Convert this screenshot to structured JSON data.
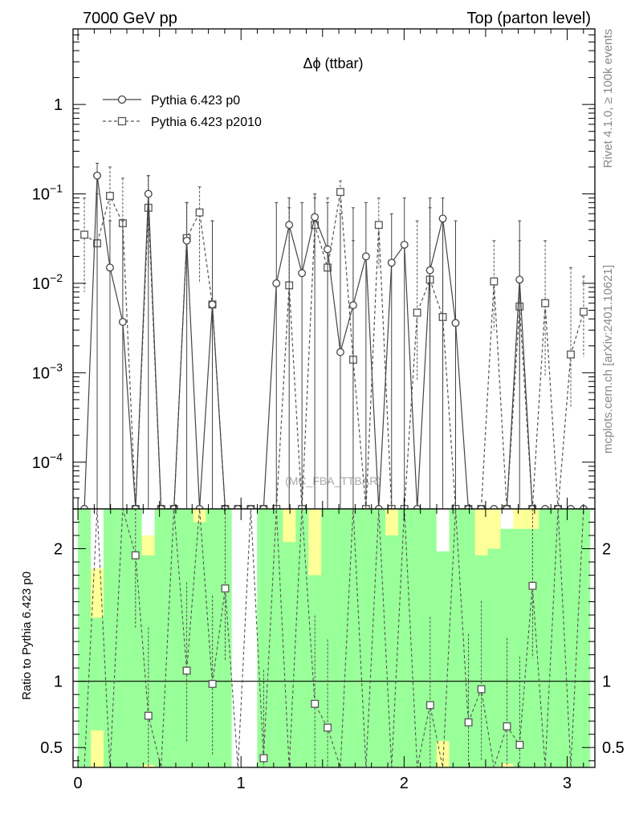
{
  "header": {
    "left": "7000 GeV pp",
    "right": "Top (parton level)"
  },
  "side_labels": {
    "rivet": "Rivet 4.1.0, ≥ 100k events",
    "mcplots": "mcplots.cern.ch [arXiv:2401.10621]"
  },
  "colors": {
    "p0": "#444444",
    "p2010": "#555555",
    "band_green": "#99ff99",
    "band_yellow": "#ffff99",
    "watermark": "#aaaaaa"
  },
  "chart_data": [
    {
      "type": "line",
      "panel": "main",
      "title": "Δϕ (ttbar)",
      "watermark": "(MC_FBA_TTBAR)",
      "yscale": "log",
      "xlim": [
        -0.03,
        3.17
      ],
      "ylim": [
        3e-05,
        7
      ],
      "yticks": [
        {
          "value": 0.0001,
          "base": "10",
          "exp": "−4"
        },
        {
          "value": 0.001,
          "base": "10",
          "exp": "−3"
        },
        {
          "value": 0.01,
          "base": "10",
          "exp": "−2"
        },
        {
          "value": 0.1,
          "base": "10",
          "exp": "−1"
        },
        {
          "value": 1,
          "base": "1",
          "exp": ""
        }
      ],
      "legend": [
        "Pythia 6.423 p0",
        "Pythia 6.423 p2010"
      ],
      "legend_position": "top-left",
      "series": [
        {
          "name": "Pythia 6.423 p0",
          "x": [
            0.118,
            0.196,
            0.275,
            0.432,
            0.667,
            0.825,
            1.217,
            1.296,
            1.374,
            1.453,
            1.531,
            1.61,
            1.688,
            1.767,
            1.924,
            2.003,
            2.16,
            2.238,
            2.317,
            2.709
          ],
          "y": [
            0.16,
            0.015,
            0.0037,
            0.1,
            0.03,
            0.0058,
            0.01,
            0.045,
            0.013,
            0.055,
            0.024,
            0.0017,
            0.0057,
            0.02,
            0.017,
            0.027,
            0.014,
            0.053,
            0.0036,
            0.011
          ],
          "err_up": [
            0.22,
            0.05,
            0.05,
            0.16,
            0.08,
            0.05,
            0.08,
            0.09,
            0.08,
            0.1,
            0.08,
            0.06,
            0.07,
            0.08,
            0.06,
            0.09,
            0.09,
            0.09,
            0.05,
            0.05
          ]
        },
        {
          "name": "Pythia 6.423 p2010",
          "x": [
            0.039,
            0.118,
            0.196,
            0.275,
            0.432,
            0.667,
            0.746,
            0.825,
            1.296,
            1.453,
            1.531,
            1.61,
            1.688,
            1.845,
            2.081,
            2.16,
            2.238,
            2.552,
            2.709,
            2.866,
            3.023,
            3.101
          ],
          "y": [
            0.035,
            0.028,
            0.095,
            0.047,
            0.07,
            0.032,
            0.062,
            0.0058,
            0.0095,
            0.045,
            0.015,
            0.105,
            0.0014,
            0.045,
            0.0047,
            0.011,
            0.0042,
            0.0105,
            0.0055,
            0.006,
            0.0016,
            0.0048
          ],
          "err_up": [
            0.09,
            0.1,
            0.2,
            0.15,
            0.16,
            0.08,
            0.12,
            0.05,
            0.07,
            0.09,
            0.09,
            0.14,
            0.03,
            0.09,
            0.05,
            0.07,
            0.05,
            0.03,
            0.03,
            0.03,
            0.015,
            0.012
          ],
          "err_down": [
            0.008,
            0.005,
            0.035,
            0.01,
            0.015,
            0.005,
            0.01,
            0.0012,
            0.002,
            0.02,
            0.003,
            0.05,
            0.0002,
            0.015,
            0.0008,
            0.002,
            0.0006,
            0.003,
            0.0008,
            0.0009,
            0.0004,
            0.0015
          ]
        }
      ]
    },
    {
      "type": "line",
      "panel": "ratio",
      "ylabel": "Ratio to Pythia 6.423 p0",
      "xlim": [
        -0.03,
        3.17
      ],
      "ylim": [
        0.35,
        2.3
      ],
      "xticks": [
        0,
        1,
        2,
        3
      ],
      "yticks": [
        0.5,
        1,
        2
      ],
      "reference": 1,
      "series": [
        {
          "name": "Pythia 6.423 p2010 / Pythia 6.423 p0",
          "x": [
            0.353,
            0.432,
            0.667,
            0.825,
            0.903,
            1.139,
            1.453,
            1.531,
            2.16,
            2.395,
            2.474,
            2.631,
            2.709,
            2.788
          ],
          "y": [
            1.95,
            0.74,
            1.08,
            0.98,
            1.7,
            0.42,
            0.83,
            0.65,
            0.82,
            0.69,
            0.94,
            0.66,
            0.52,
            1.72
          ]
        }
      ]
    }
  ]
}
